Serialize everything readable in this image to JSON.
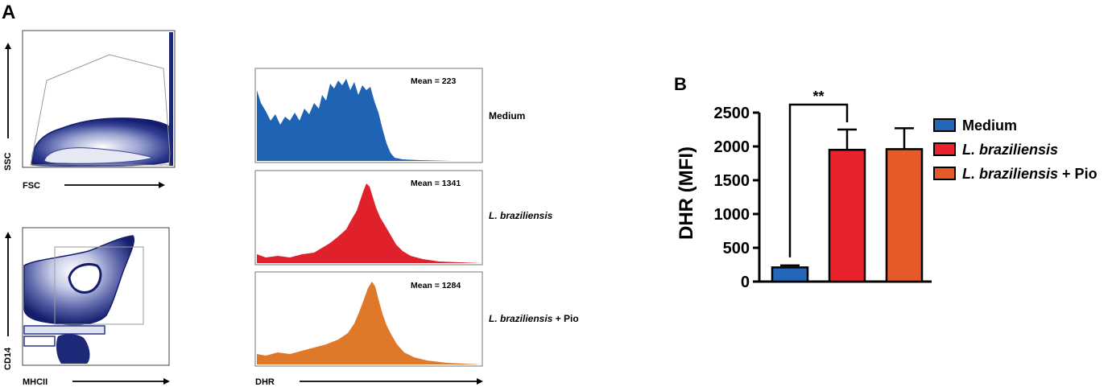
{
  "panels": {
    "a_label": "A",
    "b_label": "B"
  },
  "flow": {
    "scatter1": {
      "x_label": "FSC",
      "y_label": "SSC"
    },
    "scatter2": {
      "x_label": "MHCII",
      "y_label": "CD14"
    },
    "hist_x_label": "DHR"
  },
  "histograms": [
    {
      "name": "Medium",
      "name_italic": "",
      "name_suffix": "",
      "mean_text": "Mean = 223",
      "color": "#1f63b5"
    },
    {
      "name": "",
      "name_italic": "L. braziliensis",
      "name_suffix": "",
      "mean_text": "Mean = 1341",
      "color": "#e0212b"
    },
    {
      "name": "",
      "name_italic": "L. braziliensis",
      "name_suffix": " + Pio",
      "mean_text": "Mean = 1284",
      "color": "#e0782a"
    }
  ],
  "chart_data": {
    "type": "bar",
    "title": "",
    "xlabel": "",
    "ylabel": "DHR (MFI)",
    "ylim": [
      0,
      2500
    ],
    "yticks": [
      "0",
      "500",
      "1000",
      "1500",
      "2000",
      "2500"
    ],
    "categories": [
      "Medium",
      "L. braziliensis",
      "L. braziliensis + Pio"
    ],
    "values": [
      210,
      1950,
      1960
    ],
    "errors": [
      30,
      300,
      310
    ],
    "colors": [
      "#2267b8",
      "#e8232d",
      "#e55a28"
    ],
    "significance": {
      "between": [
        0,
        1
      ],
      "label": "**"
    },
    "legend": {
      "placement": "right",
      "items": [
        {
          "italic": "",
          "text": "Medium"
        },
        {
          "italic": "L. braziliensis",
          "text": ""
        },
        {
          "italic": "L. braziliensis",
          "text": " + Pio"
        }
      ]
    }
  }
}
